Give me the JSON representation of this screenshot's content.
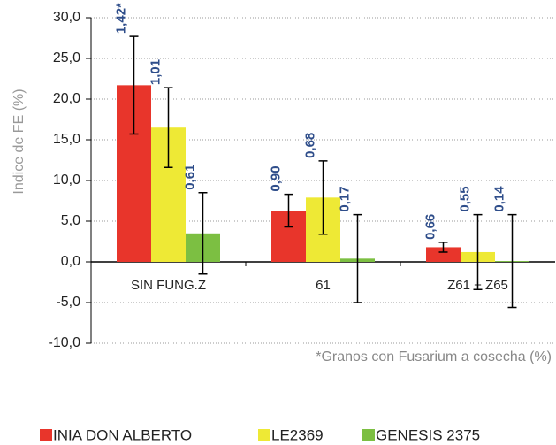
{
  "chart_data": {
    "type": "bar",
    "y_label": "Indice de FE (%)",
    "footnote": "*Granos con Fusarium a cosecha (%)",
    "categories": [
      "SIN FUNG.Z",
      "61",
      "Z61 + Z65"
    ],
    "series": [
      {
        "name": "INIA DON ALBERTO",
        "color": "#e8352b",
        "values": [
          21.7,
          6.3,
          1.8
        ],
        "errors": [
          6.0,
          2.0,
          0.6
        ],
        "annotations": [
          "1,42*",
          "0,90",
          "0,66"
        ]
      },
      {
        "name": "LE2369",
        "color": "#eee935",
        "values": [
          16.5,
          7.9,
          1.2
        ],
        "errors": [
          4.9,
          4.5,
          4.6
        ],
        "annotations": [
          "1,01",
          "0,68",
          "0,55"
        ]
      },
      {
        "name": "GENESIS 2375",
        "color": "#7cbf42",
        "values": [
          3.5,
          0.4,
          0.1
        ],
        "errors": [
          5.0,
          5.4,
          5.7
        ],
        "annotations": [
          "0,61",
          "0,17",
          "0,14"
        ]
      }
    ],
    "ylim": [
      -10,
      30
    ],
    "yticks": [
      {
        "value": -10,
        "label": "-10,0"
      },
      {
        "value": -5,
        "label": "-5,0"
      },
      {
        "value": 0,
        "label": "0,0"
      },
      {
        "value": 5,
        "label": "5,0"
      },
      {
        "value": 10,
        "label": "10,0"
      },
      {
        "value": 15,
        "label": "15,0"
      },
      {
        "value": 20,
        "label": "20,0"
      },
      {
        "value": 25,
        "label": "25,0"
      },
      {
        "value": 30,
        "label": "30,0"
      }
    ],
    "grid": true
  }
}
